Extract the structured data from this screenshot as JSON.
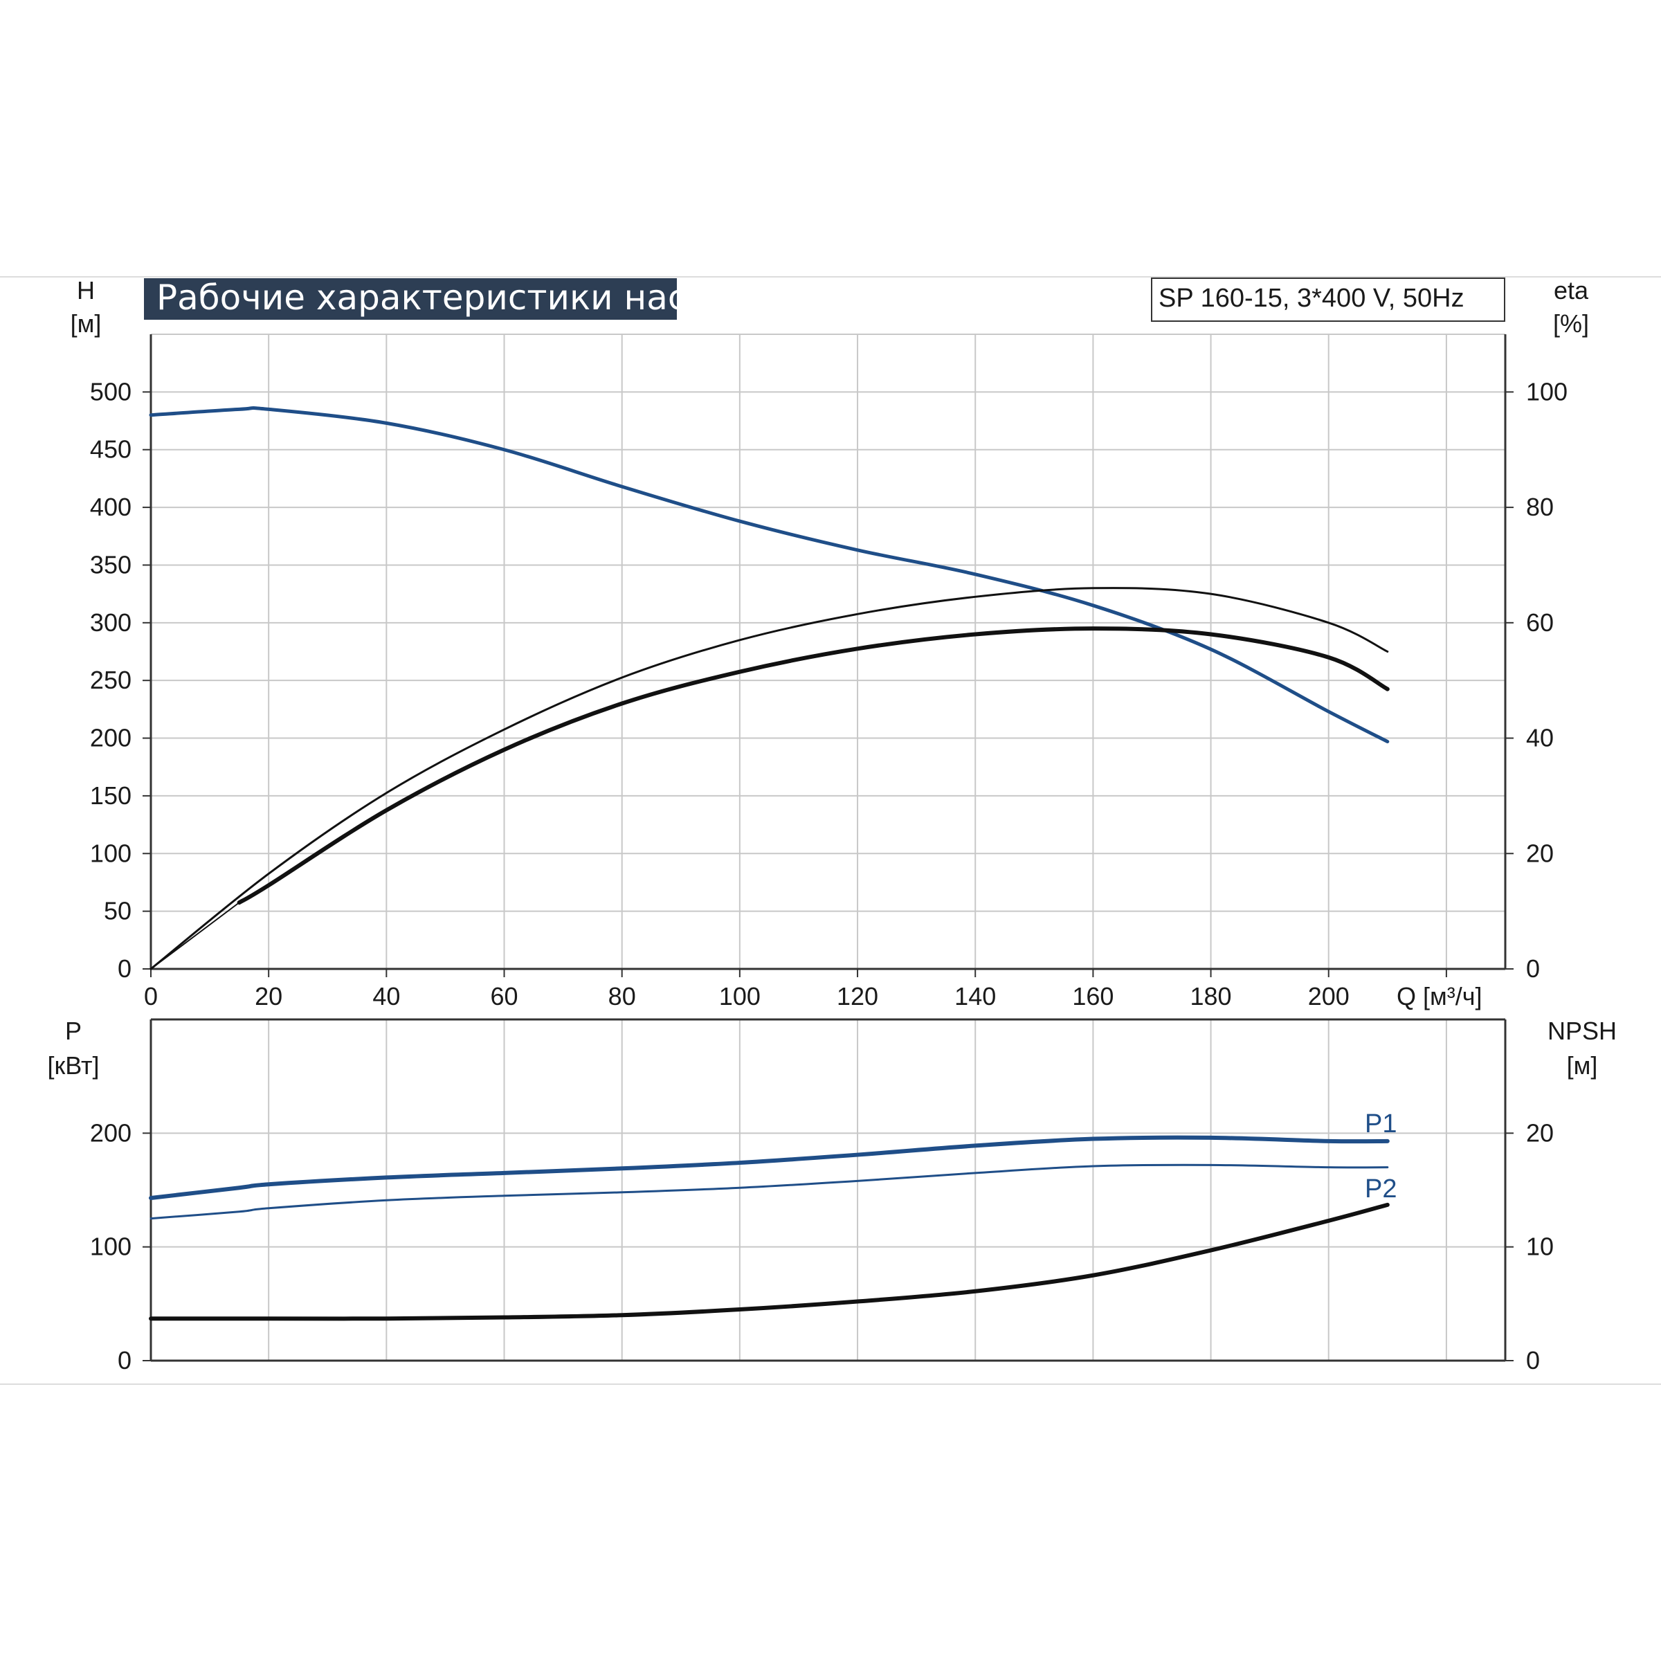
{
  "title": "Рабочие характеристики насоса",
  "model_label": "SP 160-15, 3*400 V, 50Hz",
  "colors": {
    "blue": "#1f4e88",
    "black": "#111111",
    "grid": "#c8c8c8",
    "title_bg": "#2d3e54"
  },
  "chart_data": [
    {
      "type": "line",
      "x_label": "Q [м³/ч]",
      "x_ticks": [
        "0",
        "20",
        "40",
        "60",
        "80",
        "100",
        "120",
        "140",
        "160",
        "180",
        "200"
      ],
      "xlim": [
        0,
        230
      ],
      "y_label": "H",
      "y_unit": "[м]",
      "ylim": [
        0,
        550
      ],
      "y_ticks": [
        "0",
        "50",
        "100",
        "150",
        "200",
        "250",
        "300",
        "350",
        "400",
        "450",
        "500"
      ],
      "y2_label": "eta",
      "y2_unit": "[%]",
      "y2lim": [
        0,
        110
      ],
      "y2_ticks": [
        "0",
        "20",
        "40",
        "60",
        "80",
        "100"
      ],
      "grid": true,
      "series": [
        {
          "axis": "left",
          "color": "blue",
          "width": 5,
          "x": [
            0,
            15,
            20,
            40,
            60,
            80,
            100,
            120,
            140,
            160,
            180,
            200,
            210
          ],
          "y": [
            480,
            485,
            485,
            473,
            450,
            418,
            388,
            363,
            342,
            315,
            277,
            223,
            197
          ]
        },
        {
          "axis": "right",
          "color": "black",
          "width": 3,
          "x": [
            0,
            20,
            40,
            60,
            80,
            100,
            120,
            140,
            160,
            180,
            200,
            210
          ],
          "y": [
            0,
            16.5,
            30.5,
            41.5,
            50.5,
            57,
            61.5,
            64.5,
            66,
            65,
            60,
            55
          ]
        },
        {
          "axis": "right",
          "color": "black",
          "width": 6,
          "x": [
            15,
            20,
            40,
            60,
            80,
            100,
            120,
            140,
            160,
            180,
            200,
            210
          ],
          "y": [
            11.5,
            14.5,
            27.5,
            38,
            46,
            51.5,
            55.5,
            58,
            59,
            58,
            54,
            48.5
          ]
        },
        {
          "axis": "right",
          "color": "black",
          "width": 2,
          "x": [
            0,
            15
          ],
          "y": [
            0,
            11.5
          ]
        }
      ]
    },
    {
      "type": "line",
      "y_label": "P",
      "y_unit": "[кВт]",
      "ylim": [
        0,
        300
      ],
      "y_ticks": [
        "0",
        "100",
        "200"
      ],
      "y2_label": "NPSH",
      "y2_unit": "[м]",
      "y2lim": [
        0,
        30
      ],
      "y2_ticks": [
        "0",
        "10",
        "20"
      ],
      "xlim": [
        0,
        230
      ],
      "grid": true,
      "series": [
        {
          "name": "P1",
          "axis": "left",
          "color": "blue",
          "width": 6,
          "x": [
            0,
            15,
            20,
            40,
            60,
            80,
            100,
            120,
            140,
            160,
            180,
            200,
            210
          ],
          "y": [
            143,
            152,
            155,
            161,
            165,
            169,
            174,
            181,
            189,
            195,
            196,
            193,
            193
          ]
        },
        {
          "name": "P2",
          "axis": "left",
          "color": "blue",
          "width": 3,
          "x": [
            0,
            15,
            20,
            40,
            60,
            80,
            100,
            120,
            140,
            160,
            180,
            200,
            210
          ],
          "y": [
            125,
            131,
            134,
            141,
            145,
            148,
            152,
            158,
            165,
            171,
            172,
            170,
            170
          ]
        },
        {
          "axis": "right",
          "color": "black",
          "width": 6,
          "x": [
            0,
            15,
            20,
            40,
            60,
            80,
            100,
            120,
            140,
            160,
            180,
            200,
            210
          ],
          "y": [
            3.7,
            3.7,
            3.7,
            3.7,
            3.8,
            4.0,
            4.5,
            5.2,
            6.1,
            7.5,
            9.7,
            12.3,
            13.7
          ]
        }
      ]
    }
  ]
}
